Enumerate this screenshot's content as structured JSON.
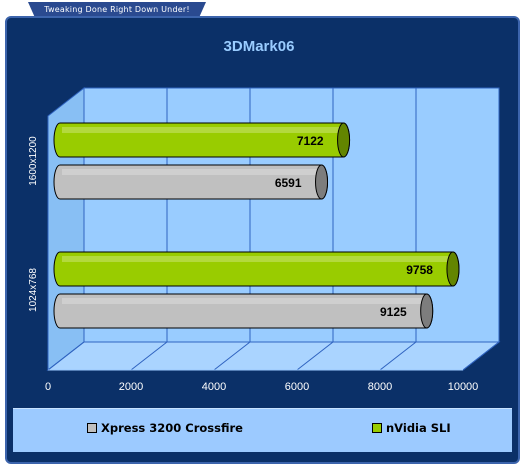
{
  "header": {
    "tagline": "Tweaking Done Right Down Under!"
  },
  "colors": {
    "frame_bg": "#0b3068",
    "plot_bg": "#99ccff",
    "grid": "#2f63c0",
    "title": "#99ccff",
    "xpress": "#c0c0c0",
    "nvidia": "#99cc00"
  },
  "chart_data": {
    "type": "bar",
    "orientation": "horizontal",
    "title": "3DMark06",
    "categories": [
      "1600x1200",
      "1024x768"
    ],
    "series": [
      {
        "name": "Xpress 3200 Crossfire",
        "values": [
          6591,
          9125
        ],
        "color": "#c0c0c0"
      },
      {
        "name": "nVidia SLI",
        "values": [
          7122,
          9758
        ],
        "color": "#99cc00"
      }
    ],
    "xlim": [
      0,
      10000
    ],
    "xticks": [
      0,
      2000,
      4000,
      6000,
      8000,
      10000
    ],
    "grid": true,
    "legend_position": "bottom",
    "data_labels": true
  }
}
